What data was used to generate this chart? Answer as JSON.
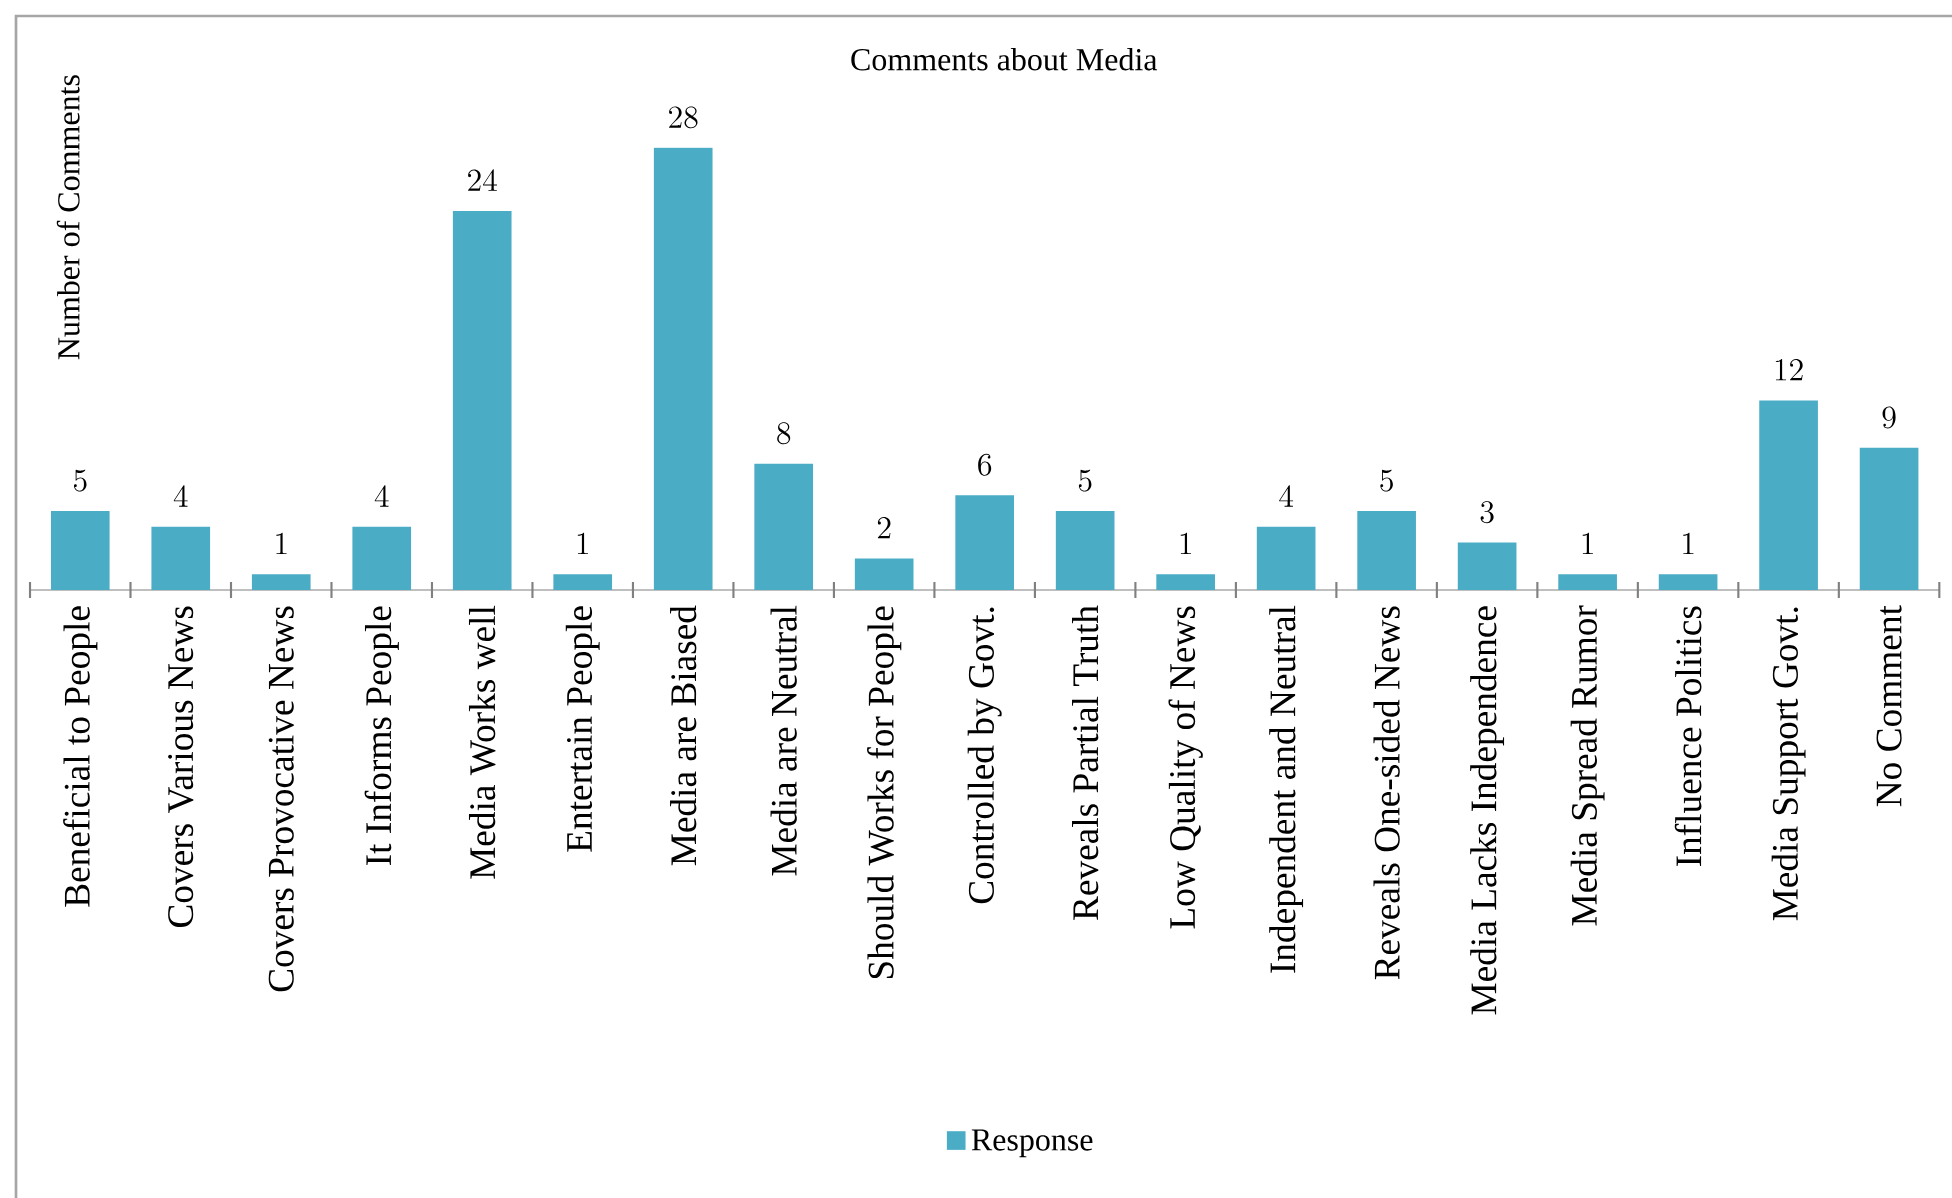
{
  "chart_data": {
    "type": "bar",
    "title": "Comments about Media",
    "ylabel": "Number of Comments",
    "categories": [
      "Beneficial to People",
      "Covers Various News",
      "Covers Provocative News",
      "It Informs People",
      "Media Works well",
      "Entertain People",
      "Media are Biased",
      "Media are Neutral",
      "Should Works for People",
      "Controlled by Govt.",
      "Reveals Partial Truth",
      "Low Quality of News",
      "Independent and Neutral",
      "Reveals One-sided News",
      "Media Lacks Independence",
      "Media Spread Rumor",
      "Influence Politics",
      "Media Support Govt.",
      "No Comment"
    ],
    "series": [
      {
        "name": "Response",
        "color": "#4bacc6",
        "values": [
          5,
          4,
          1,
          4,
          24,
          1,
          28,
          8,
          2,
          6,
          5,
          1,
          4,
          5,
          3,
          1,
          1,
          12,
          9
        ]
      }
    ],
    "data_labels": true,
    "legend": "bottom"
  }
}
